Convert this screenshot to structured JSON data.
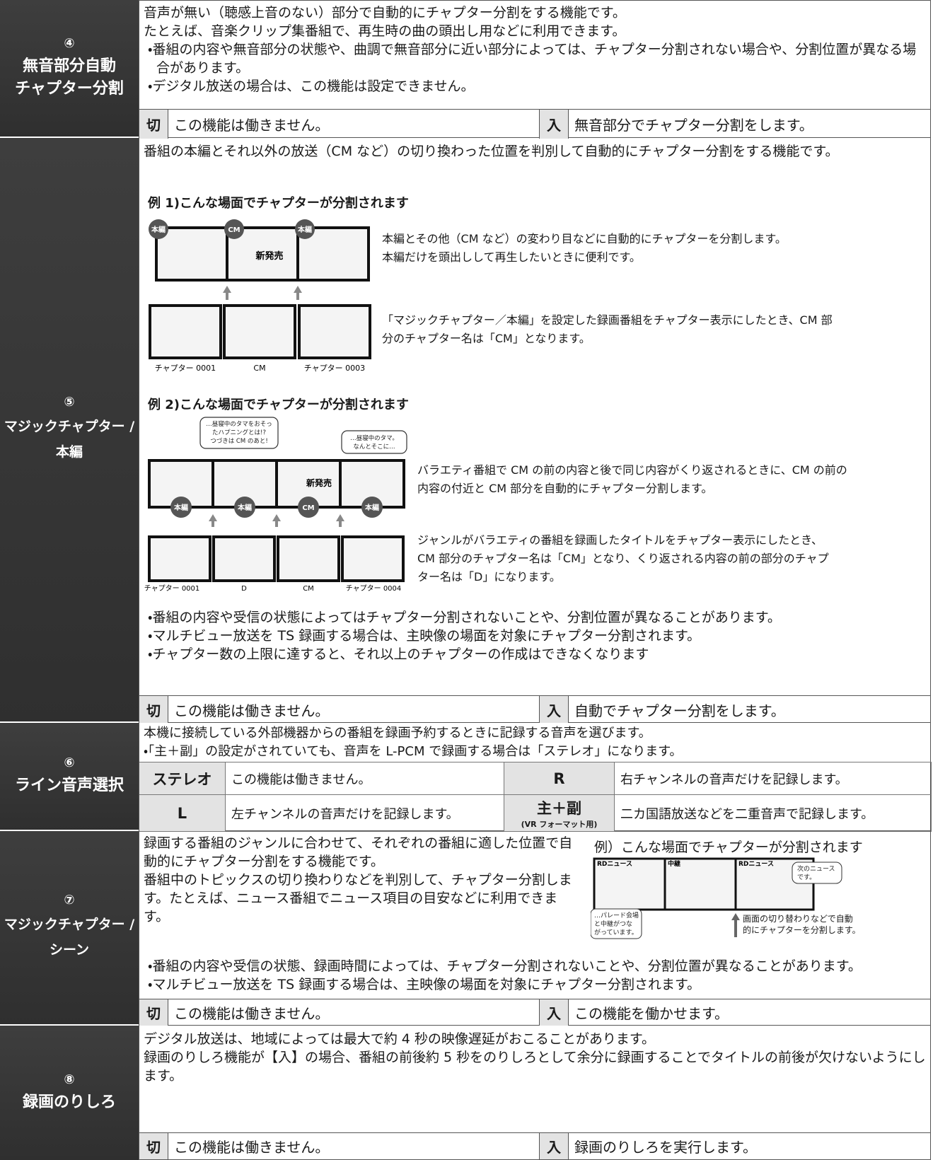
{
  "rows": [
    {
      "number": "④",
      "title": [
        "無音部分自動",
        "チャプター分割"
      ],
      "description": [
        "音声が無い（聴感上音のない）部分で自動的にチャプター分割をする機能です。",
        "たとえば、音楽クリップ集番組で、再生時の曲の頭出し用などに利用できます。"
      ],
      "bullets": [
        "・番組の内容や無音部分の状態や、曲調で無音部分に近い部分によっては、チャプター分割されない場合や、分割位置が異なる場合があります。",
        "・デジタル放送の場合は、この機能は設定できません。"
      ],
      "options": [
        {
          "key": "切",
          "text": "この機能は働きません。"
        },
        {
          "key": "入",
          "text": "無音部分でチャプター分割をします。"
        }
      ]
    },
    {
      "number": "⑤",
      "title": [
        "マジックチャプター /",
        "本編"
      ],
      "description": [
        "番組の本編とそれ以外の放送（CM など）の切り換わった位置を判別して自動的にチャプター分割をする機能です。"
      ],
      "example1": {
        "heading": "例 1)こんな場面でチャプターが分割されます",
        "badges": [
          "本編",
          "CM",
          "本編"
        ],
        "product": "新発売",
        "text1": [
          "本編とその他（CM など）の変わり目などに自動的にチャプターを分割します。",
          "本編だけを頭出しして再生したいときに便利です。"
        ],
        "captions": [
          "チャプター 0001",
          "CM",
          "チャプター 0003"
        ],
        "text2": [
          "「マジックチャプター／本編」を設定した録画番組をチャプター表示にしたとき、CM 部分のチャプター名は「CM」となります。"
        ]
      },
      "example2": {
        "heading": "例 2)こんな場面でチャプターが分割されます",
        "bubble1": [
          "…昼寝中のタマをおそっ",
          "たハプニングとは!?",
          "つづきは CM のあと!"
        ],
        "bubble2": [
          "…昼寝中のタマ。",
          "なんとそこに…"
        ],
        "badges": [
          "本編",
          "本編",
          "CM",
          "本編"
        ],
        "product": "新発売",
        "text1": [
          "バラエティ番組で CM の前の内容と後で同じ内容がくり返されるときに、CM の前の内容の付近と CM 部分を自動的にチャプター分割します。"
        ],
        "captions": [
          "チャプター 0001",
          "D",
          "CM",
          "チャプター 0004"
        ],
        "text2": [
          "ジャンルがバラエティの番組を録画したタイトルをチャプター表示にしたとき、CM 部分のチャプター名は「CM」となり、くり返される内容の前の部分のチャプター名は「D」になります。"
        ]
      },
      "bullets": [
        "・番組の内容や受信の状態によってはチャプター分割されないことや、分割位置が異なることがあります。",
        "・マルチビュー放送を TS 録画する場合は、主映像の場面を対象にチャプター分割されます。",
        "・チャプター数の上限に達すると、それ以上のチャプターの作成はできなくなります"
      ],
      "options": [
        {
          "key": "切",
          "text": "この機能は働きません。"
        },
        {
          "key": "入",
          "text": "自動でチャプター分割をします。"
        }
      ]
    },
    {
      "number": "⑥",
      "title": [
        "ライン音声選択"
      ],
      "description": [
        "本機に接続している外部機器からの番組を録画予約するときに記録する音声を選びます。"
      ],
      "bullets": [
        "・「主＋副」の設定がされていても、音声を L-PCM で録画する場合は「ステレオ」になります。"
      ],
      "options": [
        {
          "key": "ステレオ",
          "text": "この機能は働きません。"
        },
        {
          "key": "R",
          "text": "右チャンネルの音声だけを記録します。"
        },
        {
          "key": "L",
          "text": "左チャンネルの音声だけを記録します。"
        },
        {
          "key": "主＋副",
          "note": "(VR フォーマット用)",
          "text": "二カ国語放送などを二重音声で記録します。"
        }
      ]
    },
    {
      "number": "⑦",
      "title": [
        "マジックチャプター /",
        "シーン"
      ],
      "description": [
        "録画する番組のジャンルに合わせて、それぞれの番組に適した位置で自動的にチャプター分割をする機能です。",
        "番組中のトピックスの切り換わりなどを判別して、チャプター分割します。たとえば、ニュース番組でニュース項目の目安などに利用できます。"
      ],
      "example": {
        "heading": "例）こんな場面でチャプターが分割されます",
        "frames": [
          "RDニュース",
          "中継",
          "RDニュース"
        ],
        "bubble1": [
          "次のニュース",
          "です。"
        ],
        "bubble2": [
          "…パレード会場",
          "と中継がつな",
          "がっています。"
        ],
        "arrow_note": [
          "画面の切り替わりなどで自動",
          "的にチャプターを分割します。"
        ]
      },
      "bullets": [
        "・番組の内容や受信の状態、録画時間によっては、チャプター分割されないことや、分割位置が異なることがあります。",
        "・マルチビュー放送を TS 録画する場合は、主映像の場面を対象にチャプター分割されます。"
      ],
      "options": [
        {
          "key": "切",
          "text": "この機能は働きません。"
        },
        {
          "key": "入",
          "text": "この機能を働かせます。"
        }
      ]
    },
    {
      "number": "⑧",
      "title": [
        "録画のりしろ"
      ],
      "description": [
        "デジタル放送は、地域によっては最大で約 4 秒の映像遅延がおこることがあります。",
        "録画のりしろ機能が【入】の場合、番組の前後約 5 秒をのりしろとして余分に録画することでタイトルの前後が欠けないようにします。"
      ],
      "options": [
        {
          "key": "切",
          "text": "この機能は働きません。"
        },
        {
          "key": "入",
          "text": "録画のりしろを実行します。"
        }
      ]
    }
  ]
}
